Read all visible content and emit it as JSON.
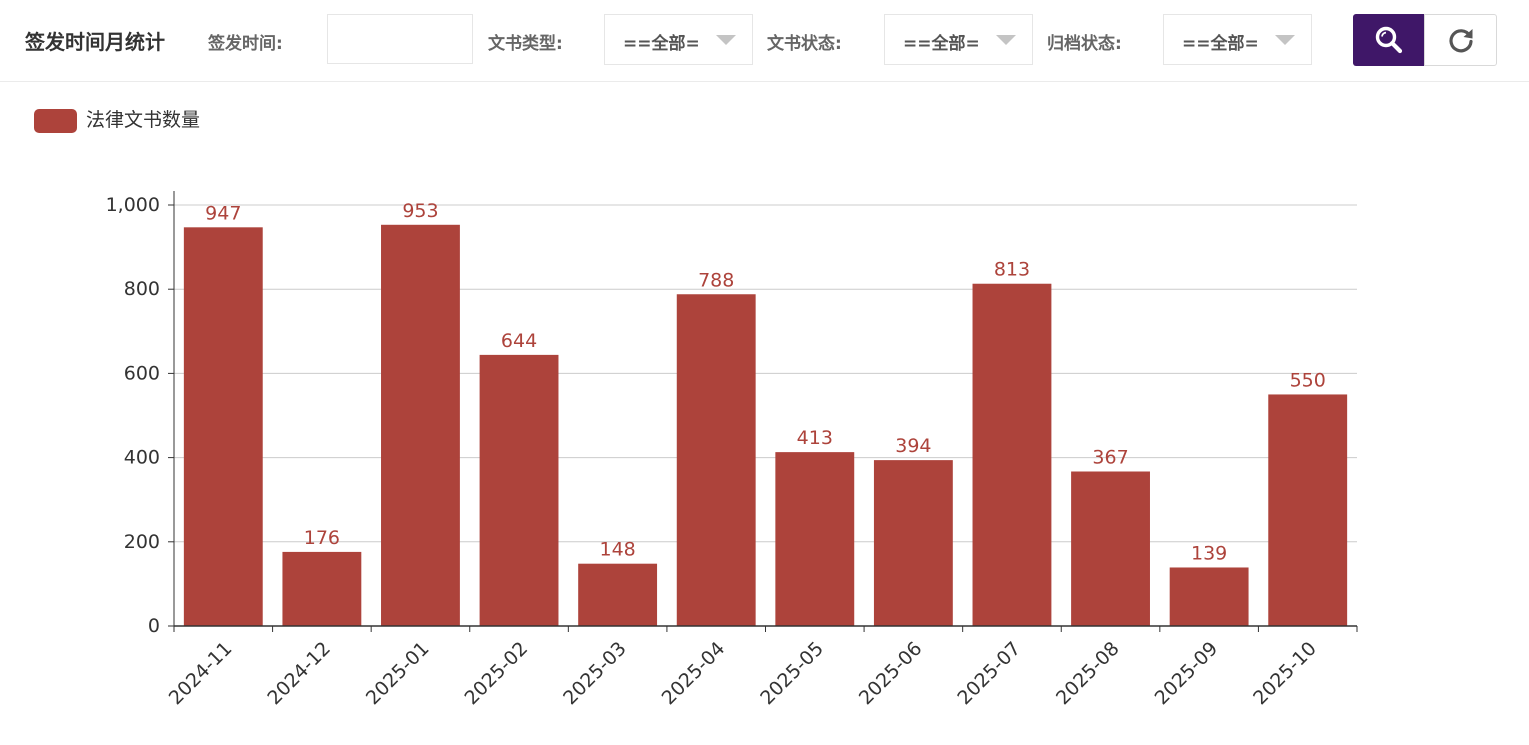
{
  "header": {
    "title": "签发时间月统计",
    "sign_time_label": "签发时间:",
    "sign_time_value": "",
    "doc_type_label": "文书类型:",
    "doc_type_value": "==全部=",
    "doc_status_label": "文书状态:",
    "doc_status_value": "==全部=",
    "archive_status_label": "归档状态:",
    "archive_status_value": "==全部=",
    "search_icon": "search-icon",
    "reset_icon": "refresh-icon"
  },
  "colors": {
    "bar": "#ad433b",
    "label": "#ad433b",
    "search_button": "#3f1768",
    "grid": "#cccccc",
    "axis": "#333333"
  },
  "chart_data": {
    "type": "bar",
    "categories": [
      "2024-11",
      "2024-12",
      "2025-01",
      "2025-02",
      "2025-03",
      "2025-04",
      "2025-05",
      "2025-06",
      "2025-07",
      "2025-08",
      "2025-09",
      "2025-10"
    ],
    "series": [
      {
        "name": "法律文书数量",
        "values": [
          947,
          176,
          953,
          644,
          148,
          788,
          413,
          394,
          813,
          367,
          139,
          550
        ]
      }
    ],
    "ylim": [
      0,
      1000
    ],
    "yticks": [
      0,
      200,
      400,
      600,
      800,
      1000
    ],
    "ytick_labels": [
      "0",
      "200",
      "400",
      "600",
      "800",
      "1,000"
    ],
    "grid": true,
    "legend_position": "top-left",
    "data_labels": true,
    "xtick_rotation": -45
  }
}
